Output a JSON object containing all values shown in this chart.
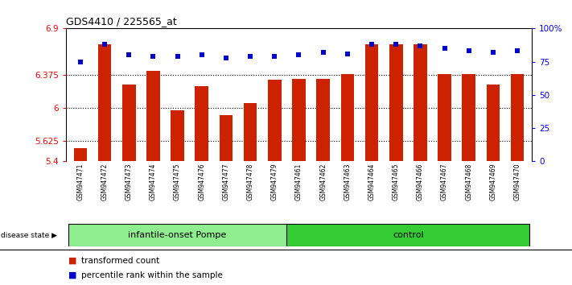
{
  "title": "GDS4410 / 225565_at",
  "samples": [
    "GSM947471",
    "GSM947472",
    "GSM947473",
    "GSM947474",
    "GSM947475",
    "GSM947476",
    "GSM947477",
    "GSM947478",
    "GSM947479",
    "GSM947461",
    "GSM947462",
    "GSM947463",
    "GSM947464",
    "GSM947465",
    "GSM947466",
    "GSM947467",
    "GSM947468",
    "GSM947469",
    "GSM947470"
  ],
  "bar_values": [
    5.55,
    6.72,
    6.27,
    6.42,
    5.97,
    6.25,
    5.92,
    6.06,
    6.32,
    6.33,
    6.33,
    6.38,
    6.72,
    6.72,
    6.72,
    6.38,
    6.38,
    6.27,
    6.38
  ],
  "percentile_values": [
    75,
    88,
    80,
    79,
    79,
    80,
    78,
    79,
    79,
    80,
    82,
    81,
    88,
    88,
    87,
    85,
    83,
    82,
    83
  ],
  "ymin": 5.4,
  "ymax": 6.9,
  "yticks": [
    5.4,
    5.625,
    6.0,
    6.375,
    6.9
  ],
  "ytick_labels": [
    "5.4",
    "5.625",
    "6",
    "6.375",
    "6.9"
  ],
  "right_yticks": [
    0,
    25,
    50,
    75,
    100
  ],
  "right_ytick_labels": [
    "0",
    "25",
    "50",
    "75",
    "100%"
  ],
  "bar_color": "#cc2200",
  "percentile_color": "#0000cc",
  "group1_label": "infantile-onset Pompe",
  "group2_label": "control",
  "group1_count": 9,
  "group2_count": 10,
  "group1_color": "#90ee90",
  "group2_color": "#33cc33",
  "disease_state_label": "disease state",
  "legend_bar_label": "transformed count",
  "legend_pct_label": "percentile rank within the sample",
  "dotted_lines": [
    5.625,
    6.0,
    6.375
  ],
  "background_color": "#ffffff",
  "plot_bg_color": "#ffffff",
  "tick_area_bg": "#cccccc"
}
